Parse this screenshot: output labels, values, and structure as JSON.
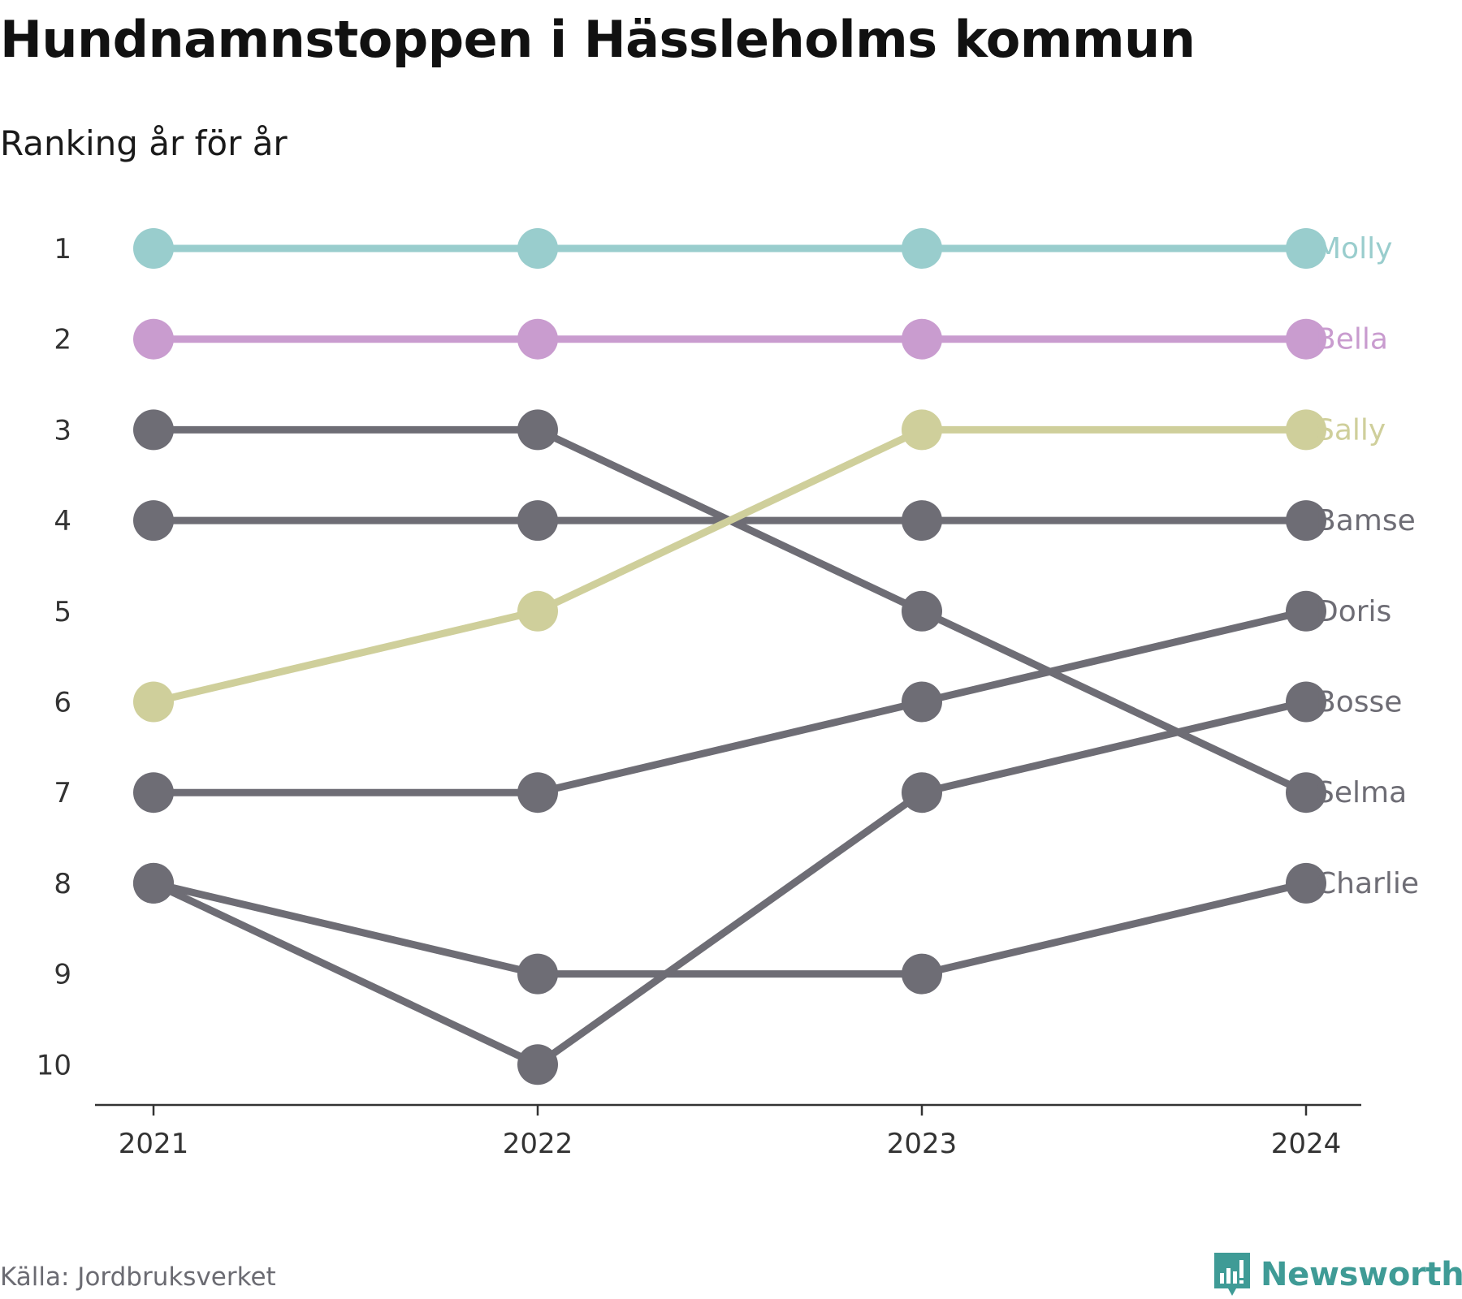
{
  "title": "Hundnamnstoppen i Hässleholms kommun",
  "subtitle": "Ranking år för år",
  "source": "Källa: Jordbruksverket",
  "brand": "Newsworthy",
  "brand_color": "#3f9b96",
  "chart_data": {
    "type": "line",
    "subtype": "bump",
    "x": [
      "2021",
      "2022",
      "2023",
      "2024"
    ],
    "y_ticks": [
      1,
      2,
      3,
      4,
      5,
      6,
      7,
      8,
      9,
      10
    ],
    "y_reversed": true,
    "grid": false,
    "series": [
      {
        "name": "Charlie",
        "color": "#6e6d75",
        "values": [
          8,
          9,
          9,
          8
        ]
      },
      {
        "name": "Selma",
        "color": "#6e6d75",
        "values": [
          3,
          3,
          5,
          7
        ]
      },
      {
        "name": "Bosse",
        "color": "#6e6d75",
        "values": [
          8,
          10,
          7,
          6
        ]
      },
      {
        "name": "Doris",
        "color": "#6e6d75",
        "values": [
          7,
          7,
          6,
          5
        ]
      },
      {
        "name": "Bamse",
        "color": "#6e6d75",
        "values": [
          4,
          4,
          4,
          4
        ]
      },
      {
        "name": "Sally",
        "color": "#cfcf9b",
        "values": [
          6,
          5,
          3,
          3
        ]
      },
      {
        "name": "Bella",
        "color": "#c99ccf",
        "values": [
          2,
          2,
          2,
          2
        ]
      },
      {
        "name": "Molly",
        "color": "#99cdcd",
        "values": [
          1,
          1,
          1,
          1
        ]
      }
    ]
  }
}
